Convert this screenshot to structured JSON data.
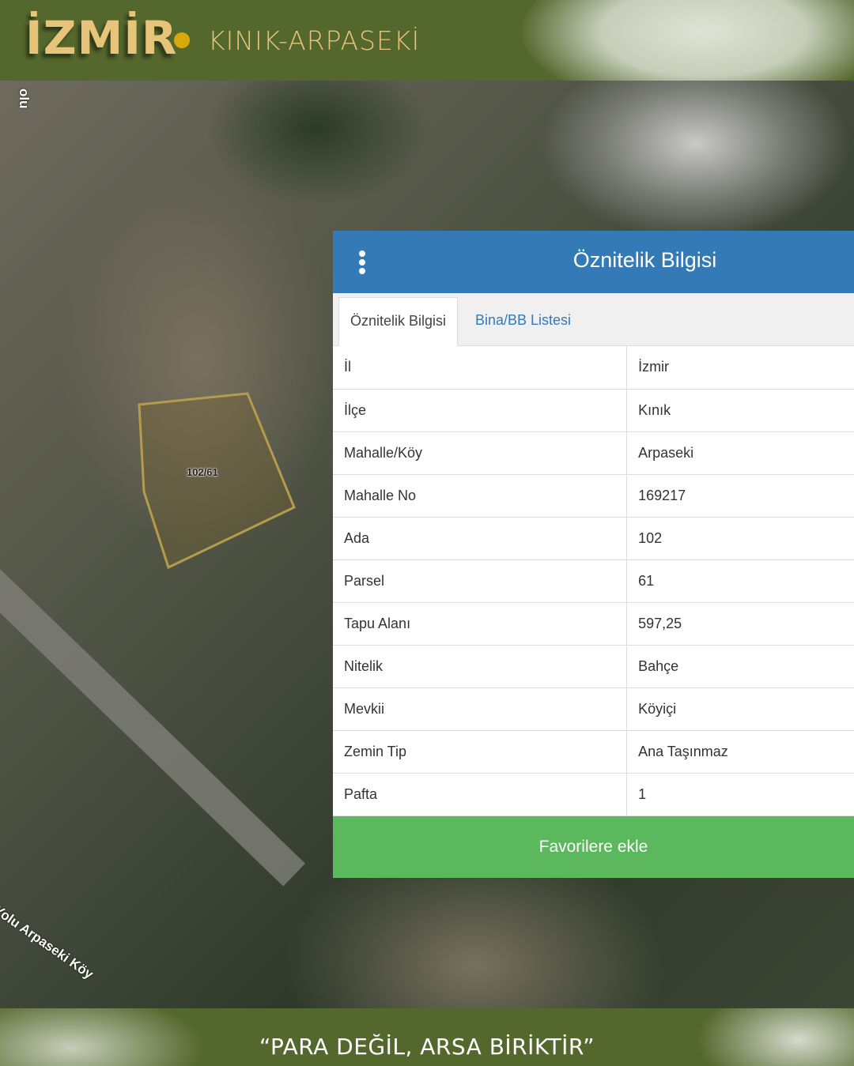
{
  "header": {
    "city": "İZMİR",
    "area": "KINIK-ARPASEKİ"
  },
  "map": {
    "parcel_label": "102/61",
    "road_label_bottom": "Yolu Arpaseki Köy",
    "road_label_top": "olu"
  },
  "panel": {
    "title": "Öznitelik Bilgisi",
    "menu_icon": "kebab-menu-icon",
    "tabs": [
      {
        "label": "Öznitelik Bilgisi",
        "active": true
      },
      {
        "label": "Bina/BB Listesi",
        "active": false
      }
    ],
    "rows": [
      {
        "key": "İl",
        "value": "İzmir"
      },
      {
        "key": "İlçe",
        "value": "Kınık"
      },
      {
        "key": "Mahalle/Köy",
        "value": "Arpaseki"
      },
      {
        "key": "Mahalle No",
        "value": "169217"
      },
      {
        "key": "Ada",
        "value": "102"
      },
      {
        "key": "Parsel",
        "value": "61"
      },
      {
        "key": "Tapu Alanı",
        "value": "597,25"
      },
      {
        "key": "Nitelik",
        "value": "Bahçe"
      },
      {
        "key": "Mevkii",
        "value": "Köyiçi"
      },
      {
        "key": "Zemin Tip",
        "value": "Ana Taşınmaz"
      },
      {
        "key": "Pafta",
        "value": "1"
      }
    ],
    "favorite_button": "Favorilere ekle"
  },
  "footer": {
    "slogan": "“PARA DEĞİL, ARSA BİRİKTİR”"
  },
  "colors": {
    "header_bg": "#54672c",
    "accent_gold": "#e6c47a",
    "panel_blue": "#337ab7",
    "button_green": "#5cb85c"
  }
}
